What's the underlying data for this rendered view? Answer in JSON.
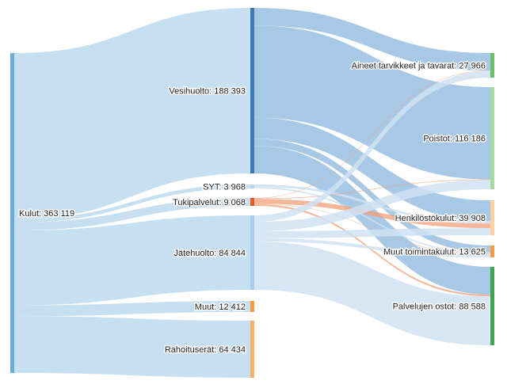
{
  "chart_data": {
    "type": "sankey",
    "nodes": [
      {
        "id": "kulut",
        "label": "Kulut: 363 119",
        "value": 363119,
        "color": "#6aaed6"
      },
      {
        "id": "vesihuolto",
        "label": "Vesihuolto: 188 393",
        "value": 188393,
        "color": "#3a7ab8"
      },
      {
        "id": "syt",
        "label": "SYT: 3 968",
        "value": 3968,
        "color": "#b9d4ec"
      },
      {
        "id": "tukipalvelut",
        "label": "Tukipalvelut: 9 068",
        "value": 9068,
        "color": "#e5592b"
      },
      {
        "id": "jatehuolto",
        "label": "Jätehuolto: 84 844",
        "value": 84844,
        "color": "#a9cde8"
      },
      {
        "id": "muut",
        "label": "Muut: 12 412",
        "value": 12412,
        "color": "#f59a45"
      },
      {
        "id": "rahoituserat",
        "label": "Rahoituserät: 64 434",
        "value": 64434,
        "color": "#f6b26b"
      },
      {
        "id": "aineet",
        "label": "Aineet tarvikkeet ja tavarat: 27 966",
        "value": 27966,
        "color": "#6cbf6a"
      },
      {
        "id": "poistot",
        "label": "Poistot: 116 186",
        "value": 116186,
        "color": "#a8dba3"
      },
      {
        "id": "henkilosto",
        "label": "Henkilöstökulut: 39 908",
        "value": 39908,
        "color": "#fdd0a2"
      },
      {
        "id": "muuttoiminta",
        "label": "Muut toimintakulut: 13 625",
        "value": 13625,
        "color": "#f59a45"
      },
      {
        "id": "palvelujen",
        "label": "Palvelujen ostot: 88 588",
        "value": 88588,
        "color": "#41a553"
      }
    ],
    "links": [
      {
        "source": "kulut",
        "target": "vesihuolto",
        "value": 188393
      },
      {
        "source": "kulut",
        "target": "syt",
        "value": 3968
      },
      {
        "source": "kulut",
        "target": "tukipalvelut",
        "value": 9068
      },
      {
        "source": "kulut",
        "target": "jatehuolto",
        "value": 84844
      },
      {
        "source": "kulut",
        "target": "muut",
        "value": 12412
      },
      {
        "source": "kulut",
        "target": "rahoituserat",
        "value": 64434
      },
      {
        "source": "vesihuolto",
        "target": "aineet",
        "value": 20000
      },
      {
        "source": "vesihuolto",
        "target": "poistot",
        "value": 105000
      },
      {
        "source": "vesihuolto",
        "target": "henkilosto",
        "value": 24000
      },
      {
        "source": "vesihuolto",
        "target": "muuttoiminta",
        "value": 8000
      },
      {
        "source": "vesihuolto",
        "target": "palvelujen",
        "value": 31393
      },
      {
        "source": "syt",
        "target": "henkilosto",
        "value": 2500
      },
      {
        "source": "syt",
        "target": "muuttoiminta",
        "value": 1468
      },
      {
        "source": "tukipalvelut",
        "target": "aineet",
        "value": 500
      },
      {
        "source": "tukipalvelut",
        "target": "poistot",
        "value": 686
      },
      {
        "source": "tukipalvelut",
        "target": "henkilosto",
        "value": 5408
      },
      {
        "source": "tukipalvelut",
        "target": "muuttoiminta",
        "value": 457
      },
      {
        "source": "tukipalvelut",
        "target": "palvelujen",
        "value": 2017
      },
      {
        "source": "jatehuolto",
        "target": "aineet",
        "value": 7466
      },
      {
        "source": "jatehuolto",
        "target": "poistot",
        "value": 10500
      },
      {
        "source": "jatehuolto",
        "target": "henkilosto",
        "value": 8000
      },
      {
        "source": "jatehuolto",
        "target": "muuttoiminta",
        "value": 3700
      },
      {
        "source": "jatehuolto",
        "target": "palvelujen",
        "value": 55178
      }
    ]
  }
}
